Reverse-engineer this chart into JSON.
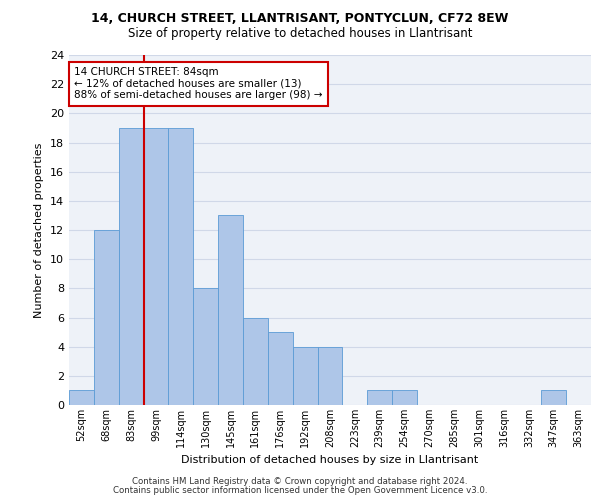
{
  "title1": "14, CHURCH STREET, LLANTRISANT, PONTYCLUN, CF72 8EW",
  "title2": "Size of property relative to detached houses in Llantrisant",
  "xlabel": "Distribution of detached houses by size in Llantrisant",
  "ylabel": "Number of detached properties",
  "categories": [
    "52sqm",
    "68sqm",
    "83sqm",
    "99sqm",
    "114sqm",
    "130sqm",
    "145sqm",
    "161sqm",
    "176sqm",
    "192sqm",
    "208sqm",
    "223sqm",
    "239sqm",
    "254sqm",
    "270sqm",
    "285sqm",
    "301sqm",
    "316sqm",
    "332sqm",
    "347sqm",
    "363sqm"
  ],
  "values": [
    1,
    12,
    19,
    19,
    19,
    8,
    13,
    6,
    5,
    4,
    4,
    0,
    1,
    1,
    0,
    0,
    0,
    0,
    0,
    1,
    0
  ],
  "bar_color": "#aec6e8",
  "bar_edgecolor": "#5b9bd5",
  "redline_x": 2.5,
  "annotation_text": "14 CHURCH STREET: 84sqm\n← 12% of detached houses are smaller (13)\n88% of semi-detached houses are larger (98) →",
  "annotation_box_color": "#ffffff",
  "annotation_box_edgecolor": "#cc0000",
  "ylim": [
    0,
    24
  ],
  "yticks": [
    0,
    2,
    4,
    6,
    8,
    10,
    12,
    14,
    16,
    18,
    20,
    22,
    24
  ],
  "grid_color": "#d0d8e8",
  "background_color": "#eef2f8",
  "footer1": "Contains HM Land Registry data © Crown copyright and database right 2024.",
  "footer2": "Contains public sector information licensed under the Open Government Licence v3.0."
}
